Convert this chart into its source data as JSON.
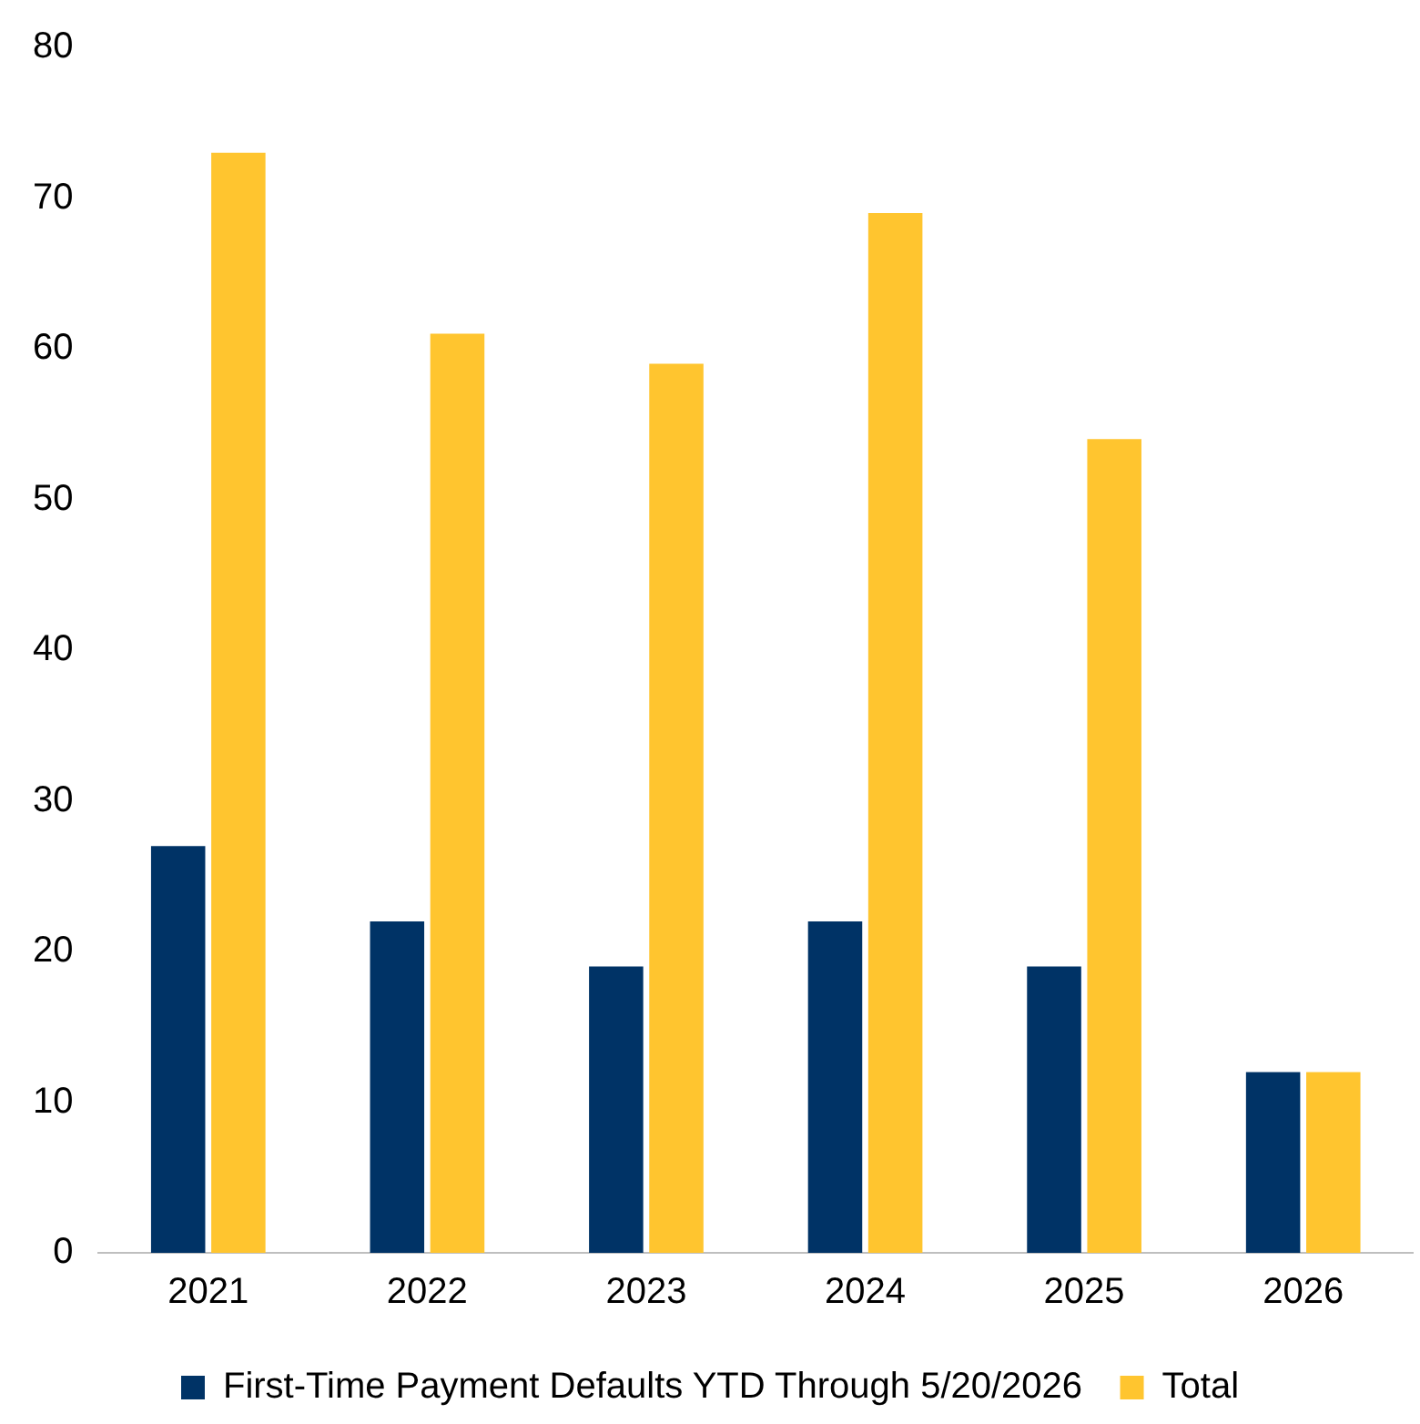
{
  "chart_data": {
    "type": "bar",
    "categories": [
      "2021",
      "2022",
      "2023",
      "2024",
      "2025",
      "2026"
    ],
    "series": [
      {
        "name": "First-Time Payment Defaults YTD Through 5/20/2026",
        "color": "#003366",
        "values": [
          27,
          22,
          19,
          22,
          19,
          12
        ]
      },
      {
        "name": "Total",
        "color": "#ffc52f",
        "values": [
          73,
          61,
          59,
          69,
          54,
          12
        ]
      }
    ],
    "ylim": [
      0,
      80
    ],
    "yticks": [
      0,
      10,
      20,
      30,
      40,
      50,
      60,
      70,
      80
    ],
    "grid": false,
    "legend": "bottom"
  }
}
